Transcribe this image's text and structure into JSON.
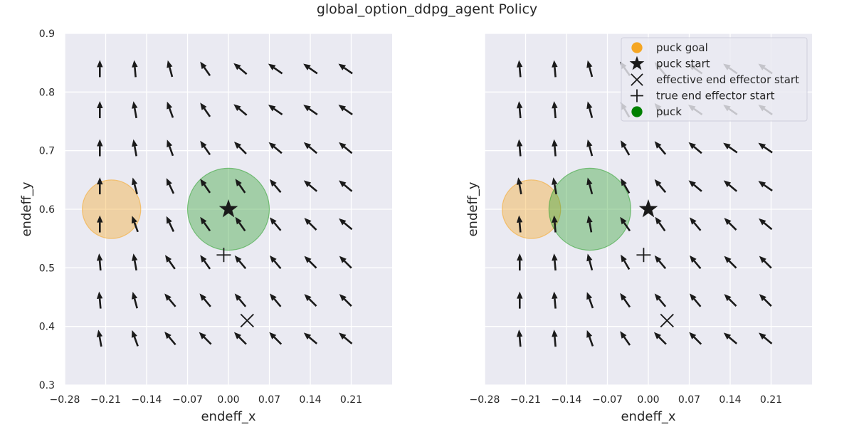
{
  "figure_title": "global_option_ddpg_agent Policy",
  "chart_data": [
    {
      "type": "scatter",
      "title": "",
      "xlabel": "endeff_x",
      "ylabel": "endeff_y",
      "xlim": [
        -0.28,
        0.28
      ],
      "ylim": [
        0.3,
        0.9
      ],
      "xticks": [
        "−0.28",
        "−0.21",
        "−0.14",
        "−0.07",
        "0.00",
        "0.07",
        "0.14",
        "0.21"
      ],
      "xtick_values": [
        -0.28,
        -0.21,
        -0.14,
        -0.07,
        0.0,
        0.07,
        0.14,
        0.21
      ],
      "yticks": [
        "0.3",
        "0.4",
        "0.5",
        "0.6",
        "0.7",
        "0.8",
        "0.9"
      ],
      "ytick_values": [
        0.3,
        0.4,
        0.5,
        0.6,
        0.7,
        0.8,
        0.9
      ],
      "show_ytick_labels": true,
      "grid": true,
      "background": "#eaeaf2",
      "arrow_color": "#1a1a1a",
      "quiver": {
        "x": [
          -0.22,
          -0.16,
          -0.1,
          -0.04,
          0.02,
          0.08,
          0.14,
          0.2
        ],
        "y": [
          0.38,
          0.445,
          0.51,
          0.575,
          0.64,
          0.705,
          0.77,
          0.84
        ],
        "angles_deg": [
          [
            100,
            110,
            130,
            135,
            135,
            135,
            140,
            140
          ],
          [
            95,
            105,
            130,
            130,
            130,
            130,
            135,
            135
          ],
          [
            95,
            100,
            125,
            125,
            130,
            130,
            135,
            135
          ],
          [
            90,
            110,
            115,
            125,
            125,
            130,
            135,
            140
          ],
          [
            90,
            105,
            115,
            125,
            125,
            130,
            140,
            140
          ],
          [
            90,
            100,
            110,
            125,
            135,
            140,
            140,
            140
          ],
          [
            90,
            100,
            110,
            125,
            140,
            145,
            145,
            145
          ],
          [
            90,
            95,
            105,
            125,
            140,
            145,
            145,
            145
          ]
        ]
      },
      "circles": [
        {
          "name": "puck goal",
          "x": -0.2,
          "y": 0.6,
          "r": 0.05,
          "color": "#f5a623",
          "opacity": 0.38
        },
        {
          "name": "puck",
          "x": 0.0,
          "y": 0.6,
          "r": 0.07,
          "color": "#2ca02c",
          "opacity": 0.38
        }
      ],
      "markers": [
        {
          "name": "puck start",
          "symbol": "star",
          "x": 0.0,
          "y": 0.6
        },
        {
          "name": "true end effector start",
          "symbol": "plus",
          "x": -0.008,
          "y": 0.522
        },
        {
          "name": "effective end effector start",
          "symbol": "x",
          "x": 0.032,
          "y": 0.41
        }
      ],
      "legend": null
    },
    {
      "type": "scatter",
      "title": "",
      "xlabel": "endeff_x",
      "ylabel": "endeff_y",
      "xlim": [
        -0.28,
        0.28
      ],
      "ylim": [
        0.3,
        0.9
      ],
      "xticks": [
        "−0.28",
        "−0.21",
        "−0.14",
        "−0.07",
        "0.00",
        "0.07",
        "0.14",
        "0.21"
      ],
      "xtick_values": [
        -0.28,
        -0.21,
        -0.14,
        -0.07,
        0.0,
        0.07,
        0.14,
        0.21
      ],
      "yticks": [],
      "ytick_values": [
        0.3,
        0.4,
        0.5,
        0.6,
        0.7,
        0.8,
        0.9
      ],
      "show_ytick_labels": false,
      "grid": true,
      "background": "#eaeaf2",
      "arrow_color": "#1a1a1a",
      "quiver": {
        "x": [
          -0.22,
          -0.16,
          -0.1,
          -0.04,
          0.02,
          0.08,
          0.14,
          0.2
        ],
        "y": [
          0.38,
          0.445,
          0.51,
          0.575,
          0.64,
          0.705,
          0.77,
          0.84
        ],
        "angles_deg": [
          [
            95,
            95,
            110,
            125,
            135,
            135,
            140,
            140
          ],
          [
            90,
            95,
            110,
            125,
            130,
            130,
            135,
            135
          ],
          [
            90,
            95,
            105,
            120,
            130,
            130,
            135,
            135
          ],
          [
            95,
            95,
            100,
            125,
            125,
            130,
            135,
            140
          ],
          [
            100,
            100,
            105,
            120,
            130,
            140,
            140,
            145
          ],
          [
            95,
            95,
            105,
            120,
            130,
            140,
            145,
            145
          ],
          [
            95,
            95,
            105,
            120,
            130,
            145,
            145,
            145
          ],
          [
            95,
            95,
            105,
            125,
            130,
            145,
            145,
            145
          ]
        ]
      },
      "circles": [
        {
          "name": "puck goal",
          "x": -0.2,
          "y": 0.6,
          "r": 0.05,
          "color": "#f5a623",
          "opacity": 0.38
        },
        {
          "name": "puck",
          "x": -0.1,
          "y": 0.6,
          "r": 0.07,
          "color": "#2ca02c",
          "opacity": 0.38
        }
      ],
      "markers": [
        {
          "name": "puck start",
          "symbol": "star",
          "x": 0.0,
          "y": 0.6
        },
        {
          "name": "true end effector start",
          "symbol": "plus",
          "x": -0.008,
          "y": 0.522
        },
        {
          "name": "effective end effector start",
          "symbol": "x",
          "x": 0.032,
          "y": 0.41
        }
      ],
      "legend": {
        "placement": "top-right",
        "entries": [
          {
            "label": "puck goal",
            "symbol": "circle",
            "color": "#f5a623"
          },
          {
            "label": "puck start",
            "symbol": "star",
            "color": "#1a1a1a"
          },
          {
            "label": "effective end effector start",
            "symbol": "x",
            "color": "#1a1a1a"
          },
          {
            "label": "true end effector start",
            "symbol": "plus",
            "color": "#1a1a1a"
          },
          {
            "label": "puck",
            "symbol": "circle",
            "color": "#008000"
          }
        ]
      }
    }
  ]
}
